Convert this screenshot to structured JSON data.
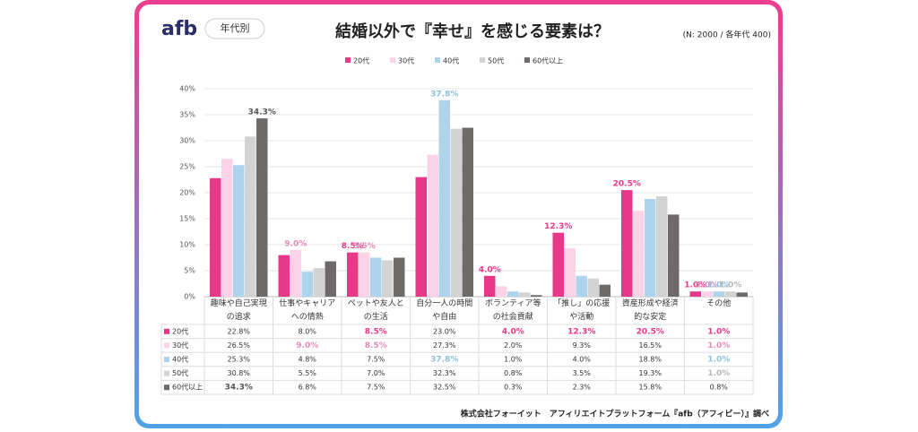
{
  "logo": "afb",
  "tag": "年代別",
  "note": "(N: 2000 / 各年代 400)",
  "footer": "株式会社フォーイット　アフィリエイトプラットフォーム『afb（アフィビー）』調べ",
  "chart_data": {
    "type": "bar",
    "title": "結婚以外で『幸せ』を感じる要素は？",
    "categories": [
      "趣味や自己実現の追求",
      "仕事やキャリアへの情熱",
      "ペットや友人との生活",
      "自分一人の時間や自由",
      "ボランティア等の社会貢献",
      "「推し」の応援や活動",
      "資産形成や経済的な安定",
      "その他"
    ],
    "series": [
      {
        "name": "20代",
        "color": "#e8388a",
        "label_color": "#e8388a",
        "values": [
          22.8,
          8.0,
          8.5,
          23.0,
          4.0,
          12.3,
          20.5,
          1.0
        ],
        "value_labels": [
          "22.8%",
          "8.0%",
          "8.5%",
          "23.0%",
          "4.0%",
          "12.3%",
          "20.5%",
          "1.0%"
        ],
        "highlight": [
          2,
          4,
          5,
          6,
          7
        ]
      },
      {
        "name": "30代",
        "color": "#fbd3e6",
        "label_color": "#e58cb8",
        "values": [
          26.5,
          9.0,
          8.5,
          27.3,
          2.0,
          9.3,
          16.5,
          1.0
        ],
        "value_labels": [
          "26.5%",
          "9.0%",
          "8.5%",
          "27.3%",
          "2.0%",
          "9.3%",
          "16.5%",
          "1.0%"
        ],
        "highlight": [
          1,
          2,
          7
        ]
      },
      {
        "name": "40代",
        "color": "#aed3ec",
        "label_color": "#8ec0e0",
        "values": [
          25.3,
          4.8,
          7.5,
          37.8,
          1.0,
          4.0,
          18.8,
          1.0
        ],
        "value_labels": [
          "25.3%",
          "4.8%",
          "7.5%",
          "37.8%",
          "1.0%",
          "4.0%",
          "18.8%",
          "1.0%"
        ],
        "highlight": [
          3,
          7
        ]
      },
      {
        "name": "50代",
        "color": "#d3d3d3",
        "label_color": "#b8b8b8",
        "values": [
          30.8,
          5.5,
          7.0,
          32.3,
          0.8,
          3.5,
          19.3,
          1.0
        ],
        "value_labels": [
          "30.8%",
          "5.5%",
          "7.0%",
          "32.3%",
          "0.8%",
          "3.5%",
          "19.3%",
          "1.0%"
        ],
        "highlight": [
          7
        ]
      },
      {
        "name": "60代以上",
        "color": "#6f6a6a",
        "label_color": "#555555",
        "values": [
          34.3,
          6.8,
          7.5,
          32.5,
          0.3,
          2.3,
          15.8,
          0.8
        ],
        "value_labels": [
          "34.3%",
          "6.8%",
          "7.5%",
          "32.5%",
          "0.3%",
          "2.3%",
          "15.8%",
          "0.8%"
        ],
        "highlight": [
          0
        ]
      }
    ],
    "ylim": [
      0,
      40
    ],
    "yticks": [
      {
        "value": 0,
        "label": "0%"
      },
      {
        "value": 5,
        "label": "5%"
      },
      {
        "value": 10,
        "label": "10%"
      },
      {
        "value": 15,
        "label": "15%"
      },
      {
        "value": 20,
        "label": "20%"
      },
      {
        "value": 25,
        "label": "25%"
      },
      {
        "value": 30,
        "label": "30%"
      },
      {
        "value": 35,
        "label": "35%"
      },
      {
        "value": 40,
        "label": "40%"
      }
    ],
    "grid": true
  }
}
